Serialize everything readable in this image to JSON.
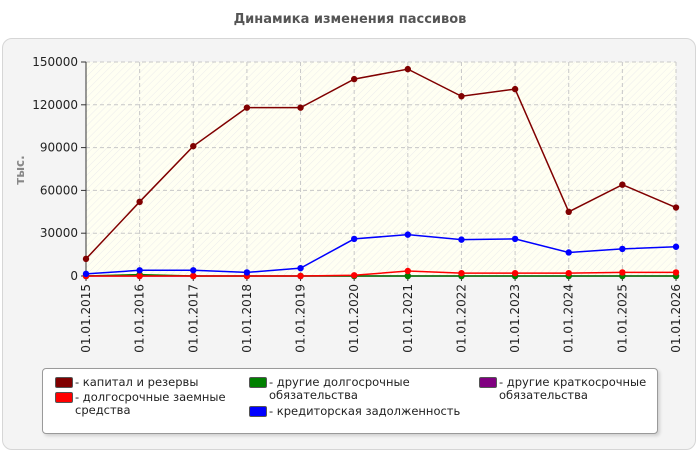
{
  "chart_data": {
    "type": "line",
    "title": "Динамика изменения пассивов",
    "ylabel": "тыс.",
    "ylim": [
      0,
      150000
    ],
    "yticks": [
      0,
      30000,
      60000,
      90000,
      120000,
      150000
    ],
    "categories": [
      "01.01.2015",
      "01.01.2016",
      "01.01.2017",
      "01.01.2018",
      "01.01.2019",
      "01.01.2020",
      "01.01.2021",
      "01.01.2022",
      "01.01.2023",
      "01.01.2024",
      "01.01.2025",
      "01.01.2026"
    ],
    "grid": true,
    "legend": "bottom",
    "series": [
      {
        "name": "- капитал и резервы",
        "color": "#800000",
        "values": [
          12000,
          52000,
          91000,
          118000,
          118000,
          138000,
          145000,
          126000,
          131000,
          45000,
          64000,
          48000
        ]
      },
      {
        "name": "- другие долгосрочные обязательства",
        "color": "#008000",
        "values": [
          0,
          1000,
          0,
          0,
          0,
          0,
          0,
          0,
          0,
          0,
          0,
          0
        ]
      },
      {
        "name": "- другие краткосрочные обязательства",
        "color": "#800080",
        "values": [
          0,
          0,
          0,
          0,
          0,
          0,
          0,
          0,
          0,
          0,
          0,
          0
        ]
      },
      {
        "name": "- долгосрочные заемные средства",
        "color": "#ff0000",
        "values": [
          0,
          0,
          0,
          0,
          0,
          500,
          3500,
          2000,
          2000,
          2000,
          2500,
          2500
        ]
      },
      {
        "name": "- кредиторская задолженность",
        "color": "#0000ff",
        "values": [
          1500,
          4000,
          4000,
          2500,
          5500,
          26000,
          29000,
          25500,
          26000,
          16500,
          19000,
          20500
        ]
      }
    ]
  }
}
